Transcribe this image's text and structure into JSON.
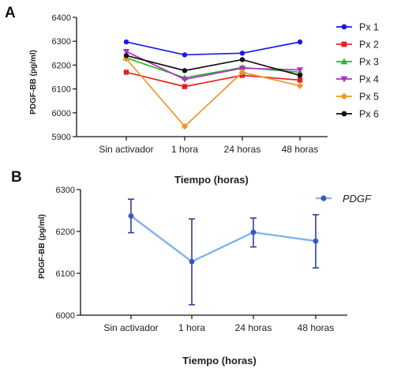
{
  "chart_data": [
    {
      "panel_label": "A",
      "type": "line",
      "xlabel": "Tiempo (horas)",
      "ylabel": "PDGF-BB (pg/ml)",
      "categories": [
        "Sin activador",
        "1 hora",
        "24 horas",
        "48 horas"
      ],
      "ylim": [
        5900,
        6400
      ],
      "yticks": [
        5900,
        6000,
        6100,
        6200,
        6300,
        6400
      ],
      "legend_position": "right",
      "series": [
        {
          "name": "Px 1",
          "color": "#1a1ae6",
          "marker": "circle",
          "values": [
            6297,
            6243,
            6250,
            6297
          ]
        },
        {
          "name": "Px 2",
          "color": "#e62020",
          "marker": "square",
          "values": [
            6170,
            6110,
            6157,
            6137
          ]
        },
        {
          "name": "Px 3",
          "color": "#22bb22",
          "marker": "triangle-up",
          "values": [
            6230,
            6147,
            6190,
            6170
          ]
        },
        {
          "name": "Px 4",
          "color": "#b030c8",
          "marker": "triangle-down",
          "values": [
            6257,
            6140,
            6187,
            6180
          ]
        },
        {
          "name": "Px 5",
          "color": "#f0952a",
          "marker": "diamond",
          "values": [
            6227,
            5943,
            6170,
            6113
          ]
        },
        {
          "name": "Px 6",
          "color": "#111111",
          "marker": "circle",
          "values": [
            6240,
            6177,
            6223,
            6157
          ]
        }
      ]
    },
    {
      "panel_label": "B",
      "type": "line",
      "xlabel": "Tiempo (horas)",
      "ylabel": "PDGF-BB (pg/ml)",
      "categories": [
        "Sin activador",
        "1 hora",
        "24 horas",
        "48 horas"
      ],
      "ylim": [
        6000,
        6300
      ],
      "yticks": [
        6000,
        6100,
        6200,
        6300
      ],
      "legend_position": "top-right",
      "series": [
        {
          "name": "PDGF",
          "color": "#7fb3ea",
          "marker_color": "#3a55c8",
          "values": [
            6237,
            6128,
            6198,
            6177
          ],
          "error_low": [
            6197,
            6025,
            6163,
            6113
          ],
          "error_high": [
            6277,
            6230,
            6232,
            6240
          ]
        }
      ]
    }
  ]
}
